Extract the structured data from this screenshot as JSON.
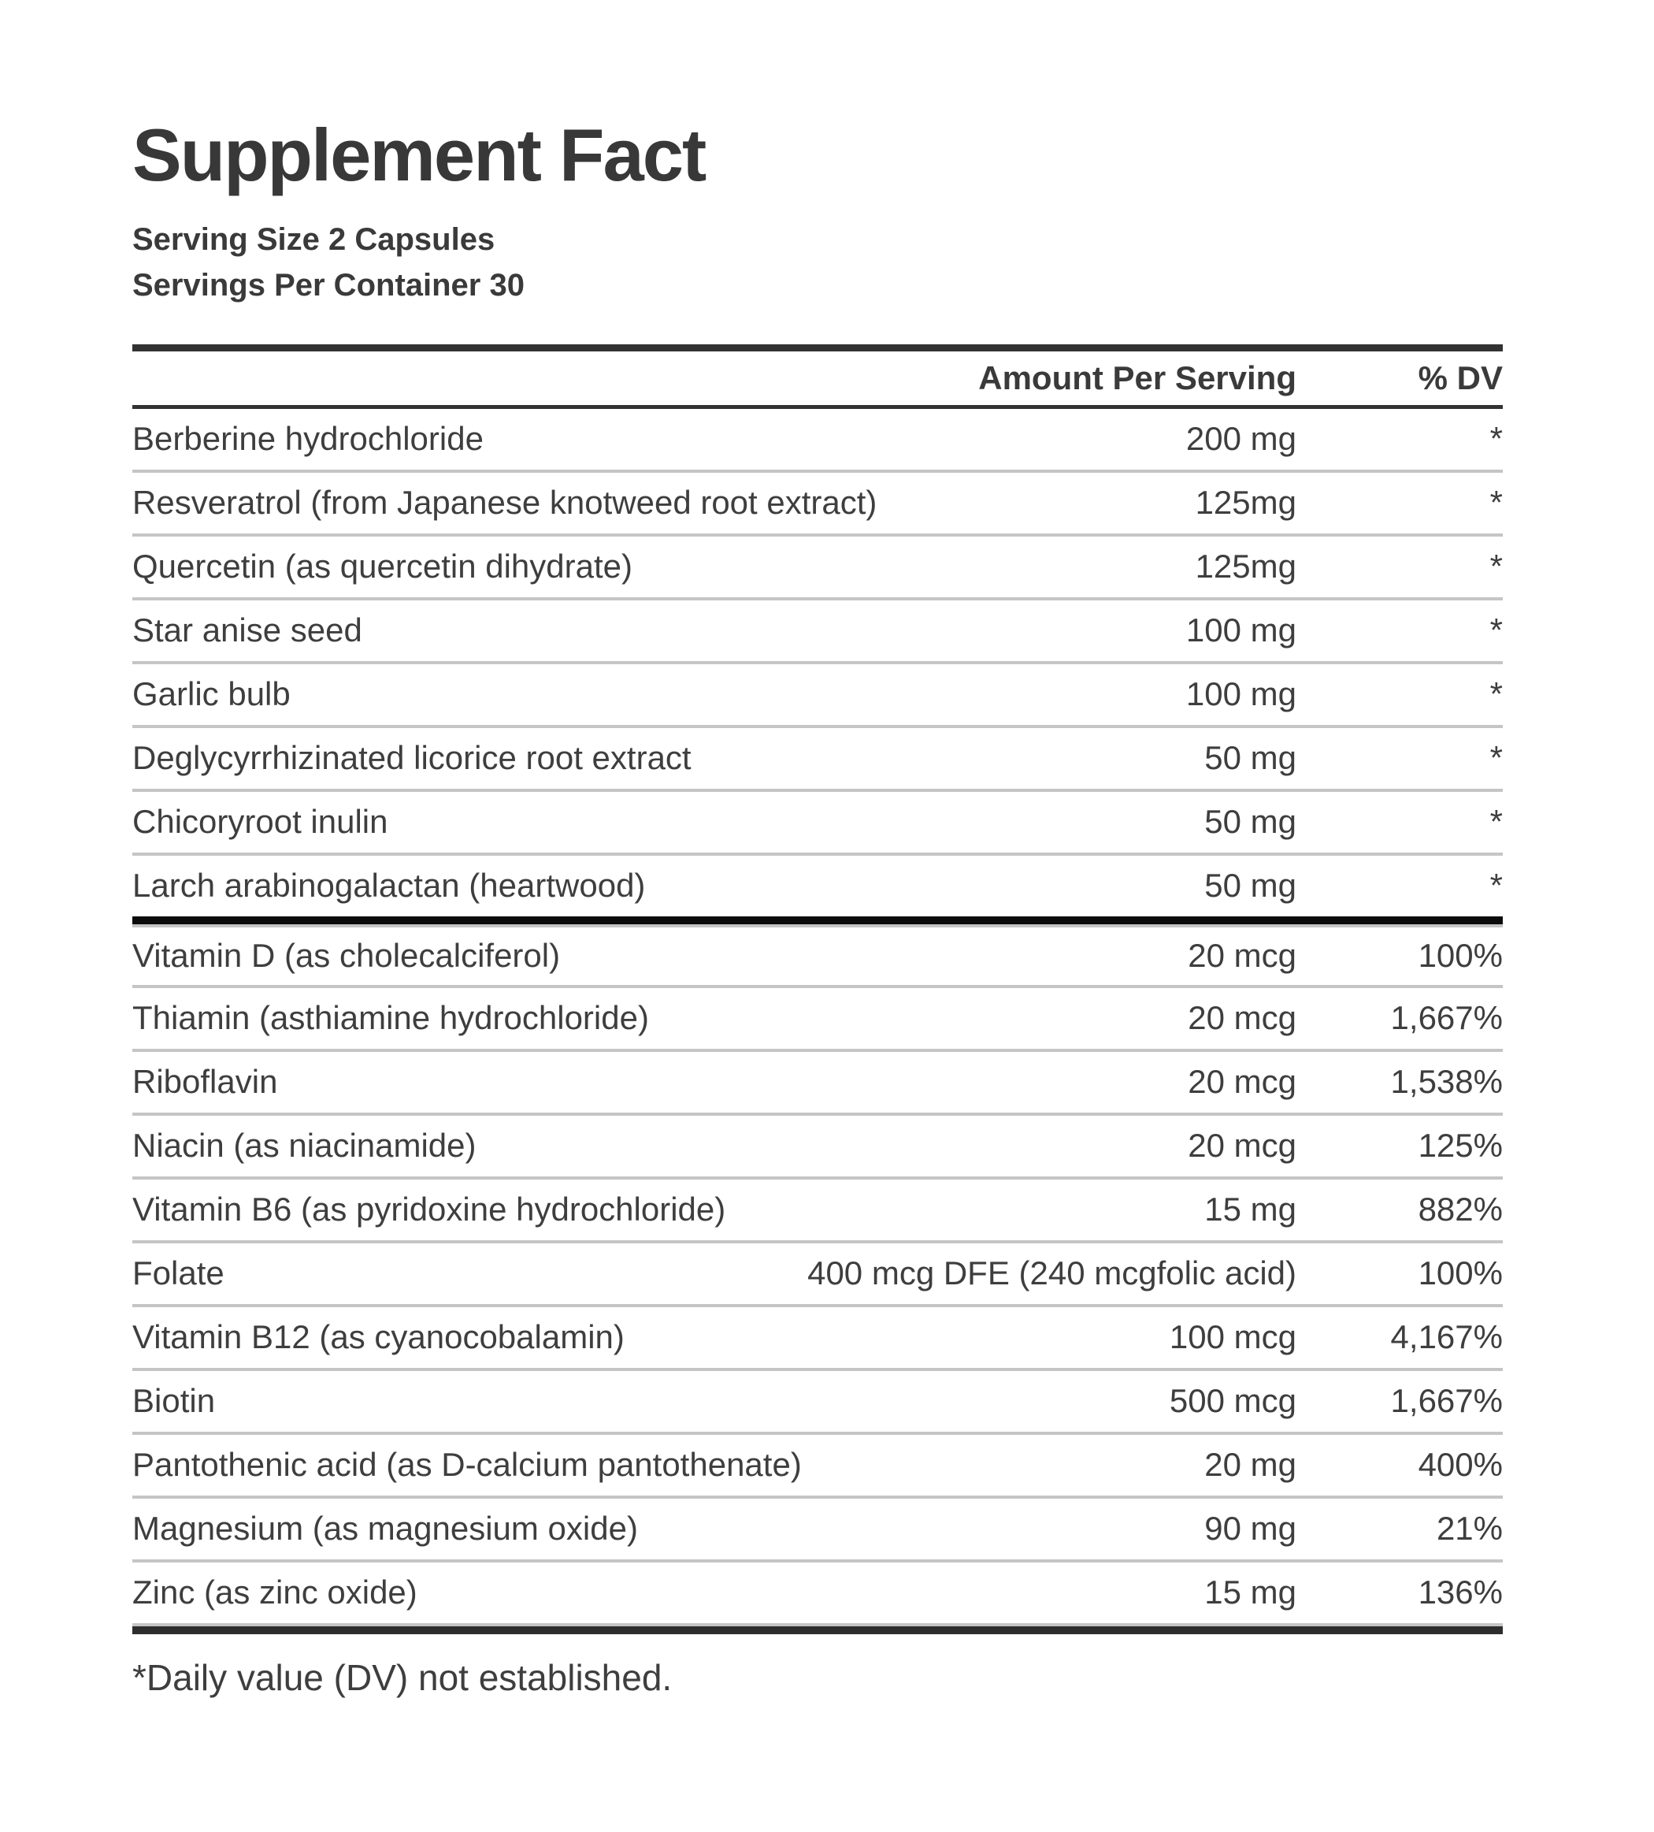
{
  "header": {
    "title": "Supplement Fact",
    "serving_size": "Serving Size 2 Capsules",
    "servings_per_container": "Servings Per Container 30"
  },
  "table": {
    "amount_header": "Amount Per Serving",
    "dv_header": "% DV",
    "rows": [
      {
        "name": "Berberine hydrochloride",
        "amount": "200 mg",
        "dv": "*"
      },
      {
        "name": "Resveratrol (from Japanese knotweed root extract)",
        "amount": "125mg",
        "dv": "*"
      },
      {
        "name": "Quercetin (as quercetin dihydrate)",
        "amount": "125mg",
        "dv": "*"
      },
      {
        "name": "Star anise seed",
        "amount": "100 mg",
        "dv": "*"
      },
      {
        "name": "Garlic bulb",
        "amount": "100 mg",
        "dv": "*"
      },
      {
        "name": "Deglycyrrhizinated licorice root extract",
        "amount": "50 mg",
        "dv": "*"
      },
      {
        "name": "Chicoryroot inulin",
        "amount": "50 mg",
        "dv": "*"
      },
      {
        "name": "Larch arabinogalactan (heartwood)",
        "amount": "50 mg",
        "dv": "*",
        "section_end": true
      },
      {
        "name": "Vitamin D (as cholecalciferol)",
        "amount": "20 mcg",
        "dv": "100%",
        "section_start": true
      },
      {
        "name": "Thiamin (asthiamine hydrochloride)",
        "amount": "20 mcg",
        "dv": "1,667%"
      },
      {
        "name": "Riboflavin",
        "amount": "20 mcg",
        "dv": "1,538%"
      },
      {
        "name": "Niacin (as niacinamide)",
        "amount": "20 mcg",
        "dv": "125%"
      },
      {
        "name": "Vitamin B6 (as pyridoxine hydrochloride)",
        "amount": "15 mg",
        "dv": "882%"
      },
      {
        "name": "Folate",
        "amount": "400 mcg DFE (240 mcgfolic acid)",
        "dv": "100%"
      },
      {
        "name": "Vitamin B12 (as cyanocobalamin)",
        "amount": "100 mcg",
        "dv": "4,167%"
      },
      {
        "name": "Biotin",
        "amount": "500 mcg",
        "dv": "1,667%"
      },
      {
        "name": "Pantothenic acid (as D-calcium pantothenate)",
        "amount": "20 mg",
        "dv": "400%"
      },
      {
        "name": "Magnesium (as magnesium oxide)",
        "amount": "90 mg",
        "dv": "21%"
      },
      {
        "name": "Zinc (as zinc oxide)",
        "amount": "15 mg",
        "dv": "136%"
      }
    ]
  },
  "footnote": "*Daily value (DV) not established.",
  "colors": {
    "text": "#3e3e3e",
    "title": "#383838",
    "bar_dark": "#323232",
    "section_divider": "#0b0b0b",
    "separator_gray": "#c5c5c5",
    "bottom_bar": "#2d2d2d"
  }
}
